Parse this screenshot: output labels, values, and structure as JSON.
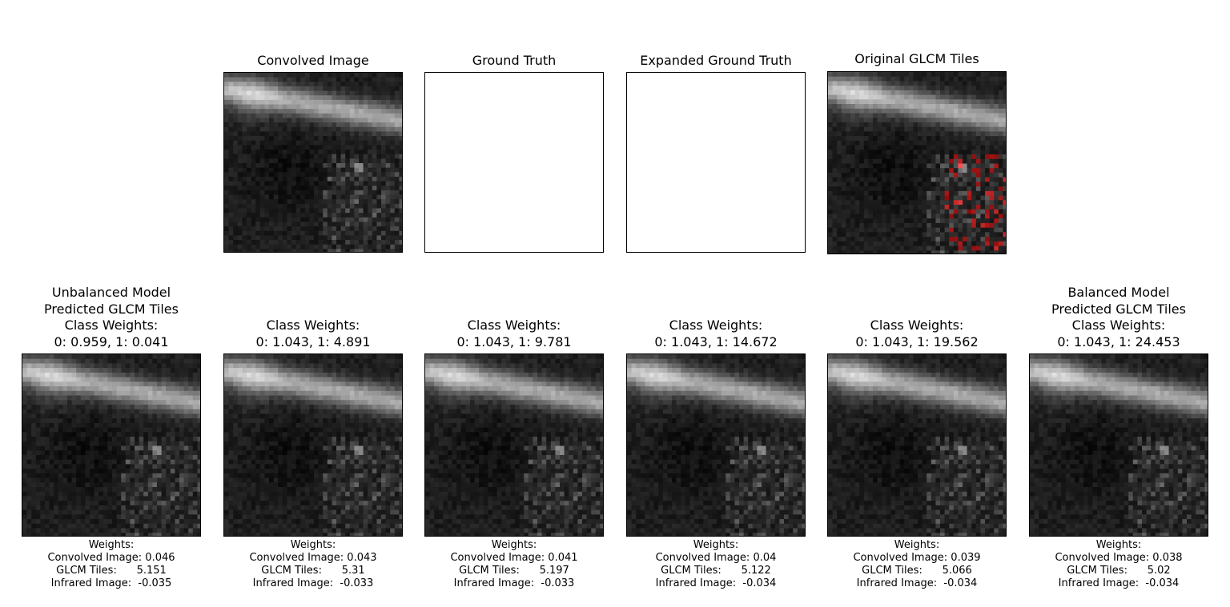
{
  "top_row": [
    {
      "id": "convolved",
      "title": "Convolved Image",
      "kind": "image"
    },
    {
      "id": "ground-truth",
      "title": "Ground Truth",
      "kind": "blank"
    },
    {
      "id": "expanded-ground-truth",
      "title": "Expanded Ground Truth",
      "kind": "blank"
    },
    {
      "id": "original-glcm",
      "title": "Original GLCM Tiles",
      "kind": "image-red"
    }
  ],
  "bottom_row": [
    {
      "title": "Unbalanced Model\nPredicted GLCM Tiles\nClass Weights:\n0: 0.959, 1: 0.041",
      "caption": "Weights:\nConvolved Image: 0.046\nGLCM Tiles:      5.151\nInfrared Image:  -0.035"
    },
    {
      "title": "Class Weights:\n0: 1.043, 1: 4.891",
      "caption": "Weights:\nConvolved Image: 0.043\nGLCM Tiles:      5.31\nInfrared Image:  -0.033"
    },
    {
      "title": "Class Weights:\n0: 1.043, 1: 9.781",
      "caption": "Weights:\nConvolved Image: 0.041\nGLCM Tiles:      5.197\nInfrared Image:  -0.033"
    },
    {
      "title": "Class Weights:\n0: 1.043, 1: 14.672",
      "caption": "Weights:\nConvolved Image: 0.04\nGLCM Tiles:      5.122\nInfrared Image:  -0.034"
    },
    {
      "title": "Class Weights:\n0: 1.043, 1: 19.562",
      "caption": "Weights:\nConvolved Image: 0.039\nGLCM Tiles:      5.066\nInfrared Image:  -0.034"
    },
    {
      "title": "Balanced Model\nPredicted GLCM Tiles\nClass Weights:\n0: 1.043, 1: 24.453",
      "caption": "Weights:\nConvolved Image: 0.038\nGLCM Tiles:      5.02\nInfrared Image:  -0.034"
    }
  ]
}
